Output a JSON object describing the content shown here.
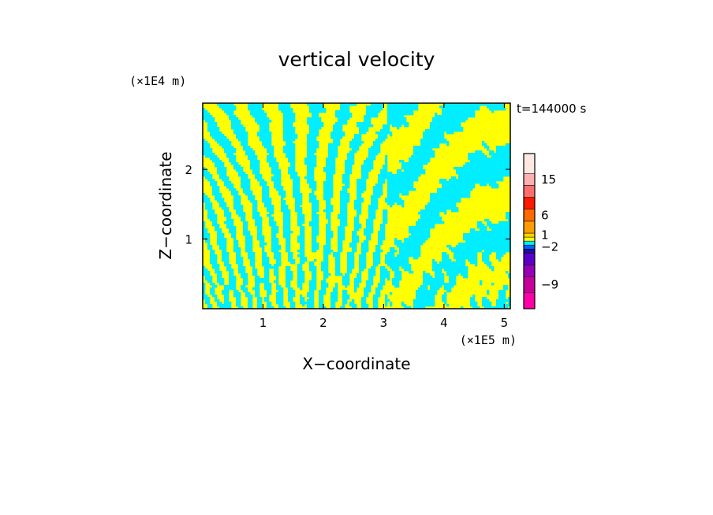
{
  "chart_data": {
    "type": "heatmap",
    "title": "vertical velocity",
    "xlabel": "X−coordinate",
    "ylabel": "Z−coordinate",
    "x_unit": "(×1E5 m)",
    "y_unit": "(×1E4 m)",
    "time_label": "t=144000 s",
    "xlim": [
      0,
      5.1
    ],
    "ylim": [
      0,
      2.95
    ],
    "x_ticks": [
      1,
      2,
      3,
      4,
      5
    ],
    "y_ticks": [
      1,
      2
    ],
    "dominant_colors": {
      "positive": "#ffff00",
      "negative": "#00eeff"
    },
    "colorbar": {
      "levels": [
        {
          "color": "#ff00a8"
        },
        {
          "color": "#c8009a"
        },
        {
          "color": "#9800b8"
        },
        {
          "color": "#5a00c8"
        },
        {
          "color": "#1a10a0"
        },
        {
          "color": "#0060ff"
        },
        {
          "color": "#00eeff"
        },
        {
          "color": "#ffff00"
        },
        {
          "color": "#ffd400"
        },
        {
          "color": "#ff9c00"
        },
        {
          "color": "#ff6a00"
        },
        {
          "color": "#ff1800"
        },
        {
          "color": "#ff6e6e"
        },
        {
          "color": "#ffb0b0"
        },
        {
          "color": "#ffe8e2"
        }
      ],
      "tick_labels": [
        {
          "text": "15",
          "level_index": 13
        },
        {
          "text": "6",
          "level_index": 10
        },
        {
          "text": "1",
          "level_index": 8
        },
        {
          "text": "−2",
          "level_index": 5
        },
        {
          "text": "−9",
          "level_index": 1
        }
      ]
    }
  }
}
